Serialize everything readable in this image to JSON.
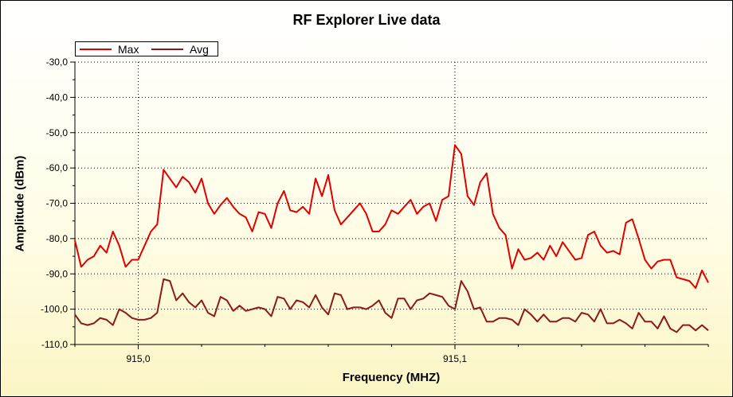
{
  "chart_data": {
    "type": "line",
    "title": "RF Explorer Live data",
    "xlabel": "Frequency (MHZ)",
    "ylabel": "Amplitude (dBm)",
    "ylim": [
      -110,
      -30
    ],
    "yticks": [
      -30,
      -40,
      -50,
      -60,
      -70,
      -80,
      -90,
      -100,
      -110
    ],
    "ytick_labels": [
      "-30,0",
      "-40,0",
      "-50,0",
      "-60,0",
      "-70,0",
      "-80,0",
      "-90,0",
      "-100,0",
      "-110,0"
    ],
    "xlim": [
      914.98,
      915.18
    ],
    "xticks": [
      915.0,
      915.1
    ],
    "xtick_labels": [
      "915,0",
      "915,1"
    ],
    "grid": true,
    "legend_position": "top-left",
    "series": [
      {
        "name": "Max",
        "color": "#e00000",
        "x": [
          914.98,
          914.982,
          914.984,
          914.986,
          914.988,
          914.99,
          914.992,
          914.994,
          914.996,
          914.998,
          915.0,
          915.002,
          915.004,
          915.006,
          915.008,
          915.01,
          915.012,
          915.014,
          915.016,
          915.018,
          915.02,
          915.022,
          915.024,
          915.026,
          915.028,
          915.03,
          915.032,
          915.034,
          915.036,
          915.038,
          915.04,
          915.042,
          915.044,
          915.046,
          915.048,
          915.05,
          915.052,
          915.054,
          915.056,
          915.058,
          915.06,
          915.062,
          915.064,
          915.066,
          915.068,
          915.07,
          915.072,
          915.074,
          915.076,
          915.078,
          915.08,
          915.082,
          915.084,
          915.086,
          915.088,
          915.09,
          915.092,
          915.094,
          915.096,
          915.098,
          915.1,
          915.102,
          915.104,
          915.106,
          915.108,
          915.11,
          915.112,
          915.114,
          915.116,
          915.118,
          915.12,
          915.122,
          915.124,
          915.126,
          915.128,
          915.13,
          915.132,
          915.134,
          915.136,
          915.138,
          915.14,
          915.142,
          915.144,
          915.146,
          915.148,
          915.15,
          915.152,
          915.154,
          915.156,
          915.158,
          915.16,
          915.162,
          915.164,
          915.166,
          915.168,
          915.17,
          915.172,
          915.174,
          915.176,
          915.178,
          915.18
        ],
        "values": [
          -80.5,
          -88,
          -86,
          -85,
          -82,
          -84,
          -78,
          -82,
          -88,
          -86,
          -86,
          -82,
          -78,
          -76,
          -60.5,
          -63,
          -65.5,
          -62.5,
          -64,
          -67,
          -63,
          -70,
          -73,
          -70.5,
          -68.5,
          -71,
          -73,
          -74,
          -78,
          -72.5,
          -73,
          -77,
          -70,
          -66.5,
          -72,
          -72.5,
          -71,
          -73,
          -63,
          -68,
          -62,
          -72,
          -76,
          -74,
          -72,
          -70,
          -73,
          -78,
          -78,
          -76,
          -72,
          -73,
          -71,
          -69,
          -73,
          -71,
          -70,
          -75,
          -69,
          -68,
          -53.5,
          -56,
          -68,
          -70.5,
          -64,
          -61.5,
          -73,
          -77,
          -79,
          -88.5,
          -83,
          -86,
          -85.5,
          -84,
          -86,
          -82,
          -85,
          -81,
          -83.5,
          -86,
          -85.5,
          -79,
          -78,
          -82,
          -84,
          -83.5,
          -84.5,
          -75.5,
          -74.5,
          -80,
          -86,
          -88.5,
          -86.5,
          -86,
          -86,
          -91,
          -91.5,
          -92,
          -94,
          -89,
          -92.5
        ]
      },
      {
        "name": "Avg",
        "color": "#8b1a1a",
        "x": [
          914.98,
          914.982,
          914.984,
          914.986,
          914.988,
          914.99,
          914.992,
          914.994,
          914.996,
          914.998,
          915.0,
          915.002,
          915.004,
          915.006,
          915.008,
          915.01,
          915.012,
          915.014,
          915.016,
          915.018,
          915.02,
          915.022,
          915.024,
          915.026,
          915.028,
          915.03,
          915.032,
          915.034,
          915.036,
          915.038,
          915.04,
          915.042,
          915.044,
          915.046,
          915.048,
          915.05,
          915.052,
          915.054,
          915.056,
          915.058,
          915.06,
          915.062,
          915.064,
          915.066,
          915.068,
          915.07,
          915.072,
          915.074,
          915.076,
          915.078,
          915.08,
          915.082,
          915.084,
          915.086,
          915.088,
          915.09,
          915.092,
          915.094,
          915.096,
          915.098,
          915.1,
          915.102,
          915.104,
          915.106,
          915.108,
          915.11,
          915.112,
          915.114,
          915.116,
          915.118,
          915.12,
          915.122,
          915.124,
          915.126,
          915.128,
          915.13,
          915.132,
          915.134,
          915.136,
          915.138,
          915.14,
          915.142,
          915.144,
          915.146,
          915.148,
          915.15,
          915.152,
          915.154,
          915.156,
          915.158,
          915.16,
          915.162,
          915.164,
          915.166,
          915.168,
          915.17,
          915.172,
          915.174,
          915.176,
          915.178,
          915.18
        ],
        "values": [
          -101.5,
          -104,
          -104.5,
          -104,
          -102.5,
          -103,
          -104.5,
          -100,
          -101,
          -102.5,
          -103,
          -103,
          -102.5,
          -101,
          -91.5,
          -92,
          -97.5,
          -95.5,
          -98,
          -99.5,
          -97.5,
          -101,
          -102,
          -96.5,
          -97.5,
          -100.5,
          -99,
          -100.5,
          -100,
          -99.5,
          -100,
          -102,
          -96.5,
          -97,
          -100,
          -97.5,
          -98,
          -99.5,
          -96,
          -99.5,
          -101.5,
          -95.5,
          -96,
          -100,
          -99.5,
          -99.5,
          -100,
          -99,
          -97.5,
          -101,
          -102.5,
          -97,
          -97,
          -100,
          -97.5,
          -97,
          -95.5,
          -96,
          -96.5,
          -99,
          -100,
          -92,
          -95,
          -100,
          -99.5,
          -103.5,
          -103.5,
          -102.5,
          -102.5,
          -103,
          -104.5,
          -100,
          -101.5,
          -103.5,
          -101.5,
          -103.5,
          -103.5,
          -102.5,
          -102.5,
          -103.5,
          -101,
          -101.5,
          -103.5,
          -100,
          -104,
          -104,
          -103,
          -104,
          -105.5,
          -101,
          -103.5,
          -103.5,
          -105.5,
          -102,
          -105.5,
          -106.5,
          -104.5,
          -104.5,
          -106,
          -104.5,
          -106
        ]
      }
    ]
  }
}
